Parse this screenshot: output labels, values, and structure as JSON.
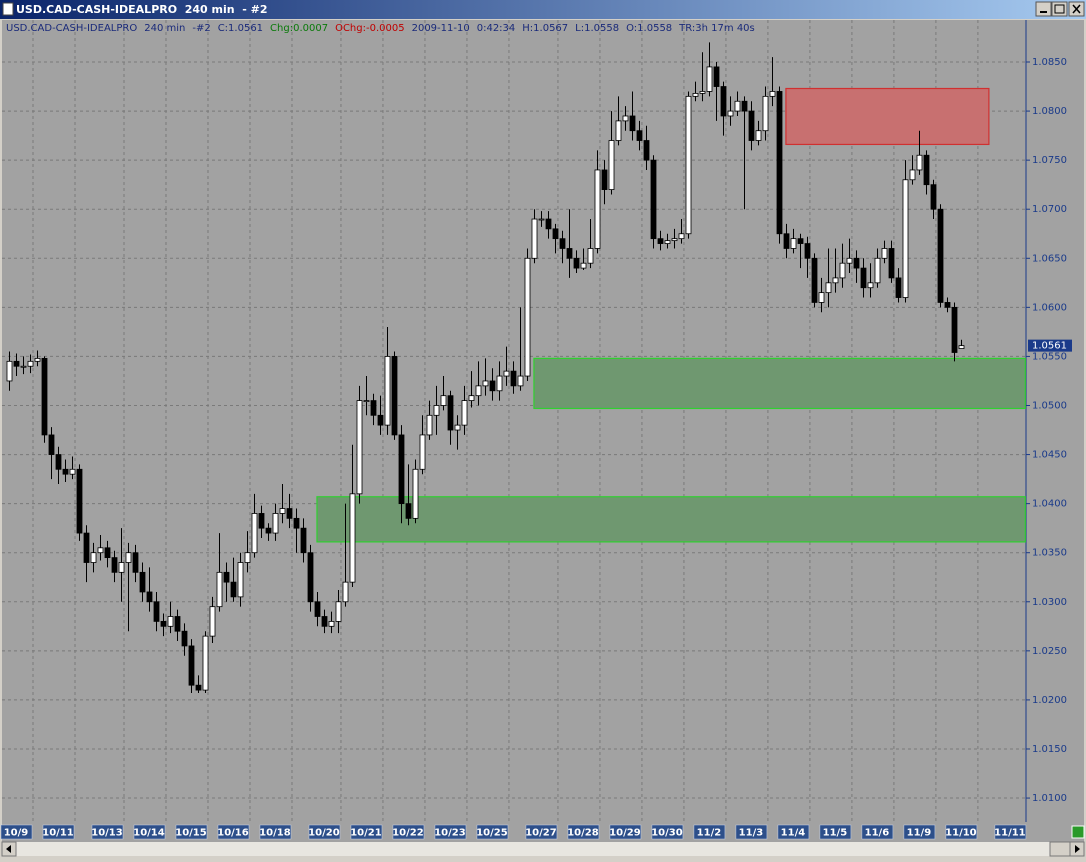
{
  "window_title": "USD.CAD-CASH-IDEALPRO  240 min  - #2",
  "chart_data": {
    "type": "candlestick",
    "info": [
      {
        "text": "USD.CAD-CASH-IDEALPRO",
        "color": "#1a2a7a"
      },
      {
        "text": "240 min",
        "color": "#1a2a7a"
      },
      {
        "text": "-#2",
        "color": "#1a2a7a"
      },
      {
        "text": "C:1.0561",
        "color": "#1a2a7a"
      },
      {
        "text": "Chg:0.0007",
        "color": "#0a7a0a"
      },
      {
        "text": "OChg:-0.0005",
        "color": "#c00000"
      },
      {
        "text": "2009-11-10",
        "color": "#1a2a7a"
      },
      {
        "text": "0:42:34",
        "color": "#1a2a7a"
      },
      {
        "text": "H:1.0567",
        "color": "#1a2a7a"
      },
      {
        "text": "L:1.0558",
        "color": "#1a2a7a"
      },
      {
        "text": "O:1.0558",
        "color": "#1a2a7a"
      },
      {
        "text": "TR:3h 17m 40s",
        "color": "#1a2a7a"
      }
    ],
    "categories": [
      null,
      "10/9",
      null,
      null,
      null,
      null,
      null,
      "10/11",
      null,
      null,
      null,
      null,
      null,
      null,
      "10/13",
      null,
      null,
      null,
      null,
      null,
      "10/14",
      null,
      null,
      null,
      null,
      null,
      "10/15",
      null,
      null,
      null,
      null,
      null,
      "10/16",
      null,
      null,
      null,
      null,
      null,
      "10/18",
      null,
      null,
      null,
      null,
      null,
      null,
      "10/20",
      null,
      null,
      null,
      null,
      null,
      "10/21",
      null,
      null,
      null,
      null,
      null,
      "10/22",
      null,
      null,
      null,
      null,
      null,
      "10/23",
      null,
      null,
      null,
      null,
      null,
      "10/25",
      null,
      null,
      null,
      null,
      null,
      null,
      "10/27",
      null,
      null,
      null,
      null,
      null,
      "10/28",
      null,
      null,
      null,
      null,
      null,
      "10/29",
      null,
      null,
      null,
      null,
      null,
      "10/30",
      null,
      null,
      null,
      null,
      null,
      "11/2",
      null,
      null,
      null,
      null,
      null,
      "11/3",
      null,
      null,
      null,
      null,
      null,
      "11/4",
      null,
      null,
      null,
      null,
      null,
      "11/5",
      null,
      null,
      null,
      null,
      null,
      "11/6",
      null,
      null,
      null,
      null,
      null,
      "11/9",
      null,
      null,
      null,
      null,
      null,
      "11/10",
      null,
      null,
      null,
      null,
      null,
      null,
      "11/11"
    ],
    "open": [
      1.0525,
      1.0545,
      1.054,
      1.054,
      1.0545,
      1.0548,
      1.047,
      1.045,
      1.0435,
      1.043,
      1.0435,
      1.037,
      1.034,
      1.035,
      1.0355,
      1.0345,
      1.033,
      1.034,
      1.035,
      1.033,
      1.031,
      1.03,
      1.028,
      1.0275,
      1.0285,
      1.027,
      1.0255,
      1.0215,
      1.021,
      1.0265,
      1.0295,
      1.033,
      1.032,
      1.0305,
      1.034,
      1.035,
      1.039,
      1.0375,
      1.037,
      1.039,
      1.0395,
      1.0385,
      1.0375,
      1.035,
      1.03,
      1.0285,
      1.0275,
      1.028,
      1.03,
      1.032,
      1.041,
      1.0505,
      1.0505,
      1.049,
      1.048,
      1.055,
      1.047,
      1.04,
      1.0385,
      1.0435,
      1.047,
      1.049,
      1.05,
      1.051,
      1.0475,
      1.048,
      1.0505,
      1.051,
      1.052,
      1.0525,
      1.0515,
      1.053,
      1.0535,
      1.052,
      1.053,
      1.065,
      1.069,
      1.069,
      1.068,
      1.067,
      1.066,
      1.065,
      1.064,
      1.0645,
      1.066,
      1.074,
      1.072,
      1.077,
      1.079,
      1.0795,
      1.078,
      1.077,
      1.075,
      1.067,
      1.0665,
      1.0668,
      1.067,
      1.0675,
      1.0815,
      1.0818,
      1.082,
      1.0845,
      1.0825,
      1.0795,
      1.08,
      1.081,
      1.08,
      1.077,
      1.078,
      1.0815,
      1.082,
      1.0675,
      1.066,
      1.067,
      1.0665,
      1.065,
      1.0605,
      1.0615,
      1.0625,
      1.063,
      1.0645,
      1.065,
      1.064,
      1.062,
      1.0625,
      1.065,
      1.066,
      1.063,
      1.061,
      1.073,
      1.074,
      1.0755,
      1.0725,
      1.07,
      1.0605,
      1.06,
      1.0558,
      null,
      null,
      null,
      null,
      null,
      null,
      null
    ],
    "high": [
      1.0555,
      1.0553,
      1.055,
      1.0552,
      1.0556,
      1.055,
      1.0478,
      1.0458,
      1.0445,
      1.0448,
      1.044,
      1.0378,
      1.036,
      1.0368,
      1.0362,
      1.0352,
      1.0375,
      1.036,
      1.0358,
      1.034,
      1.0335,
      1.031,
      1.0288,
      1.03,
      1.0292,
      1.0278,
      1.0262,
      1.0225,
      1.027,
      1.0305,
      1.037,
      1.034,
      1.0345,
      1.035,
      1.0372,
      1.041,
      1.0398,
      1.038,
      1.04,
      1.042,
      1.041,
      1.0395,
      1.0385,
      1.0358,
      1.031,
      1.0292,
      1.029,
      1.0312,
      1.04,
      1.046,
      1.052,
      1.053,
      1.0512,
      1.051,
      1.058,
      1.0555,
      1.048,
      1.044,
      1.0445,
      1.049,
      1.0505,
      1.052,
      1.053,
      1.0515,
      1.049,
      1.052,
      1.0535,
      1.0545,
      1.0548,
      1.0538,
      1.0545,
      1.056,
      1.0545,
      1.06,
      1.066,
      1.07,
      1.0698,
      1.0698,
      1.0685,
      1.0678,
      1.07,
      1.0658,
      1.066,
      1.069,
      1.076,
      1.075,
      1.08,
      1.0815,
      1.0805,
      1.082,
      1.079,
      1.0785,
      1.0755,
      1.0678,
      1.0675,
      1.068,
      1.069,
      1.082,
      1.083,
      1.086,
      1.087,
      1.085,
      1.083,
      1.0815,
      1.082,
      1.0815,
      1.081,
      1.079,
      1.0825,
      1.0855,
      1.0825,
      1.0685,
      1.068,
      1.0675,
      1.0672,
      1.0655,
      1.063,
      1.066,
      1.066,
      1.0665,
      1.067,
      1.0658,
      1.065,
      1.0645,
      1.066,
      1.0668,
      1.0668,
      1.064,
      1.075,
      1.0755,
      1.078,
      1.076,
      1.073,
      1.0705,
      1.061,
      1.0605,
      1.0567,
      null,
      null,
      null,
      null,
      null,
      null,
      null
    ],
    "low": [
      1.0515,
      1.053,
      1.0532,
      1.0533,
      1.054,
      1.0462,
      1.0425,
      1.042,
      1.0422,
      1.0425,
      1.0362,
      1.032,
      1.033,
      1.0342,
      1.0335,
      1.032,
      1.03,
      1.027,
      1.032,
      1.03,
      1.029,
      1.027,
      1.0265,
      1.0268,
      1.026,
      1.0245,
      1.0207,
      1.0207,
      1.0207,
      1.0258,
      1.029,
      1.03,
      1.03,
      1.0295,
      1.033,
      1.0345,
      1.0365,
      1.0362,
      1.0362,
      1.038,
      1.0375,
      1.035,
      1.034,
      1.029,
      1.0275,
      1.0268,
      1.0268,
      1.0268,
      1.0295,
      1.0315,
      1.04,
      1.049,
      1.048,
      1.047,
      1.047,
      1.0465,
      1.038,
      1.0378,
      1.038,
      1.043,
      1.0465,
      1.047,
      1.0495,
      1.046,
      1.0455,
      1.047,
      1.0498,
      1.05,
      1.051,
      1.0505,
      1.0505,
      1.052,
      1.0512,
      1.0515,
      1.0525,
      1.0645,
      1.0682,
      1.067,
      1.0655,
      1.0645,
      1.063,
      1.0635,
      1.0638,
      1.064,
      1.0655,
      1.0705,
      1.0715,
      1.0765,
      1.078,
      1.077,
      1.076,
      1.074,
      1.066,
      1.0658,
      1.066,
      1.066,
      1.0665,
      1.067,
      1.081,
      1.081,
      1.0815,
      1.079,
      1.0775,
      1.0785,
      1.0795,
      1.07,
      1.076,
      1.0765,
      1.077,
      1.0805,
      1.0665,
      1.065,
      1.0655,
      1.064,
      1.063,
      1.06,
      1.0595,
      1.06,
      1.0615,
      1.062,
      1.0635,
      1.0625,
      1.061,
      1.061,
      1.062,
      1.0645,
      1.0625,
      1.0605,
      1.0605,
      1.0725,
      1.0735,
      1.0715,
      1.069,
      1.06,
      1.0595,
      1.0545,
      1.0558,
      null,
      null,
      null,
      null,
      null,
      null,
      null
    ],
    "close": [
      1.0545,
      1.054,
      1.054,
      1.0545,
      1.0548,
      1.047,
      1.045,
      1.0435,
      1.043,
      1.0435,
      1.037,
      1.034,
      1.035,
      1.0355,
      1.0345,
      1.033,
      1.034,
      1.035,
      1.033,
      1.031,
      1.03,
      1.028,
      1.0275,
      1.0285,
      1.027,
      1.0255,
      1.0215,
      1.021,
      1.0265,
      1.0295,
      1.033,
      1.032,
      1.0305,
      1.034,
      1.035,
      1.039,
      1.0375,
      1.037,
      1.039,
      1.0395,
      1.0385,
      1.0375,
      1.035,
      1.03,
      1.0285,
      1.0275,
      1.028,
      1.03,
      1.032,
      1.041,
      1.0505,
      1.0505,
      1.049,
      1.048,
      1.055,
      1.047,
      1.04,
      1.0385,
      1.0435,
      1.047,
      1.049,
      1.05,
      1.051,
      1.0475,
      1.048,
      1.0505,
      1.051,
      1.052,
      1.0525,
      1.0515,
      1.053,
      1.0535,
      1.052,
      1.053,
      1.065,
      1.069,
      1.069,
      1.068,
      1.067,
      1.066,
      1.065,
      1.064,
      1.0645,
      1.066,
      1.074,
      1.072,
      1.077,
      1.079,
      1.0795,
      1.078,
      1.077,
      1.075,
      1.067,
      1.0665,
      1.0668,
      1.067,
      1.0675,
      1.0815,
      1.0818,
      1.082,
      1.0845,
      1.0825,
      1.0795,
      1.08,
      1.081,
      1.08,
      1.077,
      1.078,
      1.0815,
      1.082,
      1.0675,
      1.066,
      1.067,
      1.0665,
      1.065,
      1.0605,
      1.0615,
      1.0625,
      1.063,
      1.0645,
      1.065,
      1.064,
      1.062,
      1.0625,
      1.065,
      1.066,
      1.063,
      1.061,
      1.073,
      1.074,
      1.0755,
      1.0725,
      1.07,
      1.0605,
      1.06,
      1.0554,
      1.0561,
      null,
      null,
      null,
      null,
      null,
      null,
      null
    ],
    "up_color": "#ffffff",
    "down_color": "#000000",
    "xlim": [
      -1,
      145.3
    ],
    "ylim": [
      1.00756,
      1.08928
    ],
    "yticks": [
      {
        "value": 1.085,
        "label": "1.0850"
      },
      {
        "value": 1.08,
        "label": "1.0800"
      },
      {
        "value": 1.075,
        "label": "1.0750"
      },
      {
        "value": 1.07,
        "label": "1.0700"
      },
      {
        "value": 1.065,
        "label": "1.0650"
      },
      {
        "value": 1.06,
        "label": "1.0600"
      },
      {
        "value": 1.055,
        "label": "1.0550"
      },
      {
        "value": 1.05,
        "label": "1.0500"
      },
      {
        "value": 1.045,
        "label": "1.0450"
      },
      {
        "value": 1.04,
        "label": "1.0400"
      },
      {
        "value": 1.035,
        "label": "1.0350"
      },
      {
        "value": 1.03,
        "label": "1.0300"
      },
      {
        "value": 1.025,
        "label": "1.0250"
      },
      {
        "value": 1.02,
        "label": "1.0200"
      },
      {
        "value": 1.015,
        "label": "1.0150"
      },
      {
        "value": 1.01,
        "label": "1.0100"
      }
    ],
    "grid": true,
    "last_price": 1.0561,
    "zones": [
      {
        "color": "#c87070",
        "stroke": "#d03030",
        "y": [
          1.0766,
          1.0823
        ],
        "x": [
          111,
          140
        ]
      },
      {
        "color": "#6f9870",
        "stroke": "#30d030",
        "y": [
          1.0497,
          1.0548
        ],
        "x": [
          75,
          145.2
        ]
      },
      {
        "color": "#6f9870",
        "stroke": "#30d030",
        "y": [
          1.0361,
          1.0407
        ],
        "x": [
          44,
          145.2
        ]
      }
    ]
  }
}
